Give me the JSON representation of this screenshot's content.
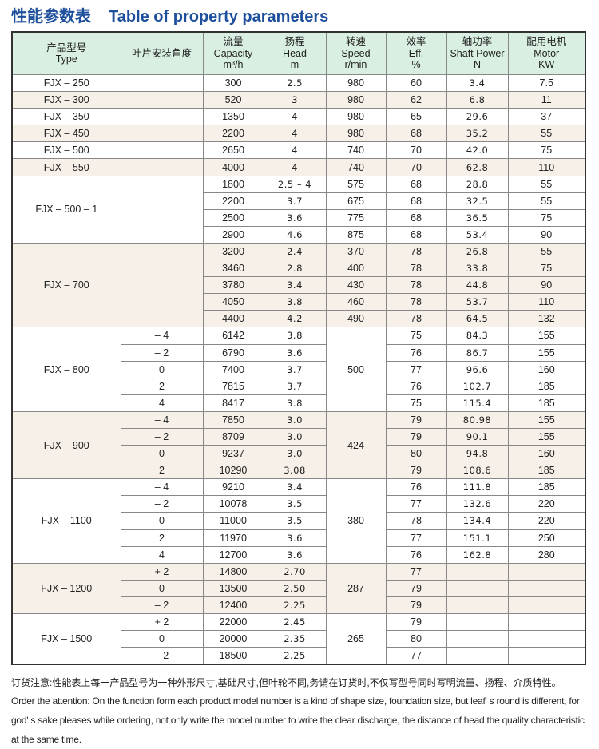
{
  "title": {
    "cn": "性能参数表",
    "en": "Table of property parameters"
  },
  "colors": {
    "title": "#1d4f9c",
    "header_bg": "#d9efe2",
    "alt_row_bg": "#f7f0e8"
  },
  "headers": [
    [
      "产品型号",
      "Type"
    ],
    [
      "叶片安装角度"
    ],
    [
      "流量",
      "Capacity",
      "m³/h"
    ],
    [
      "扬程",
      "Head",
      "m"
    ],
    [
      "转速",
      "Speed",
      "r/min"
    ],
    [
      "效率",
      "Eff.",
      "%"
    ],
    [
      "轴功率",
      "Shaft Power",
      "N"
    ],
    [
      "配用电机",
      "Motor",
      "KW"
    ]
  ],
  "groups": [
    {
      "type": "FJX – 250",
      "rows": [
        {
          "angle": "",
          "capacity": "300",
          "head": "2.5",
          "speed": "980",
          "eff": "60",
          "power": "3.4",
          "motor": "7.5"
        }
      ]
    },
    {
      "type": "FJX – 300",
      "rows": [
        {
          "angle": "",
          "capacity": "520",
          "head": "3",
          "speed": "980",
          "eff": "62",
          "power": "6.8",
          "motor": "11"
        }
      ]
    },
    {
      "type": "FJX – 350",
      "rows": [
        {
          "angle": "",
          "capacity": "1350",
          "head": "4",
          "speed": "980",
          "eff": "65",
          "power": "29.6",
          "motor": "37"
        }
      ]
    },
    {
      "type": "FJX – 450",
      "rows": [
        {
          "angle": "",
          "capacity": "2200",
          "head": "4",
          "speed": "980",
          "eff": "68",
          "power": "35.2",
          "motor": "55"
        }
      ]
    },
    {
      "type": "FJX – 500",
      "rows": [
        {
          "angle": "",
          "capacity": "2650",
          "head": "4",
          "speed": "740",
          "eff": "70",
          "power": "42.0",
          "motor": "75"
        }
      ]
    },
    {
      "type": "FJX – 550",
      "rows": [
        {
          "angle": "",
          "capacity": "4000",
          "head": "4",
          "speed": "740",
          "eff": "70",
          "power": "62.8",
          "motor": "110"
        }
      ]
    },
    {
      "type": "FJX – 500 – 1",
      "angle_merged": "",
      "rows": [
        {
          "capacity": "1800",
          "head": "2.5 – 4",
          "speed": "575",
          "eff": "68",
          "power": "28.8",
          "motor": "55"
        },
        {
          "capacity": "2200",
          "head": "3.7",
          "speed": "675",
          "eff": "68",
          "power": "32.5",
          "motor": "55"
        },
        {
          "capacity": "2500",
          "head": "3.6",
          "speed": "775",
          "eff": "68",
          "power": "36.5",
          "motor": "75"
        },
        {
          "capacity": "2900",
          "head": "4.6",
          "speed": "875",
          "eff": "68",
          "power": "53.4",
          "motor": "90"
        }
      ]
    },
    {
      "type": "FJX – 700",
      "angle_merged": "",
      "rows": [
        {
          "capacity": "3200",
          "head": "2.4",
          "speed": "370",
          "eff": "78",
          "power": "26.8",
          "motor": "55"
        },
        {
          "capacity": "3460",
          "head": "2.8",
          "speed": "400",
          "eff": "78",
          "power": "33.8",
          "motor": "75"
        },
        {
          "capacity": "3780",
          "head": "3.4",
          "speed": "430",
          "eff": "78",
          "power": "44.8",
          "motor": "90"
        },
        {
          "capacity": "4050",
          "head": "3.8",
          "speed": "460",
          "eff": "78",
          "power": "53.7",
          "motor": "110"
        },
        {
          "capacity": "4400",
          "head": "4.2",
          "speed": "490",
          "eff": "78",
          "power": "64.5",
          "motor": "132"
        }
      ]
    },
    {
      "type": "FJX – 800",
      "speed_merged": "500",
      "rows": [
        {
          "angle": "– 4",
          "capacity": "6142",
          "head": "3.8",
          "eff": "75",
          "power": "84.3",
          "motor": "155"
        },
        {
          "angle": "– 2",
          "capacity": "6790",
          "head": "3.6",
          "eff": "76",
          "power": "86.7",
          "motor": "155"
        },
        {
          "angle": "0",
          "capacity": "7400",
          "head": "3.7",
          "eff": "77",
          "power": "96.6",
          "motor": "160"
        },
        {
          "angle": "2",
          "capacity": "7815",
          "head": "3.7",
          "eff": "76",
          "power": "102.7",
          "motor": "185"
        },
        {
          "angle": "4",
          "capacity": "8417",
          "head": "3.8",
          "eff": "75",
          "power": "115.4",
          "motor": "185"
        }
      ]
    },
    {
      "type": "FJX – 900",
      "speed_merged": "424",
      "rows": [
        {
          "angle": "– 4",
          "capacity": "7850",
          "head": "3.0",
          "eff": "79",
          "power": "80.98",
          "motor": "155"
        },
        {
          "angle": "– 2",
          "capacity": "8709",
          "head": "3.0",
          "eff": "79",
          "power": "90.1",
          "motor": "155"
        },
        {
          "angle": "0",
          "capacity": "9237",
          "head": "3.0",
          "eff": "80",
          "power": "94.8",
          "motor": "160"
        },
        {
          "angle": "2",
          "capacity": "10290",
          "head": "3.08",
          "eff": "79",
          "power": "108.6",
          "motor": "185"
        }
      ]
    },
    {
      "type": "FJX – 1100",
      "speed_merged": "380",
      "rows": [
        {
          "angle": "– 4",
          "capacity": "9210",
          "head": "3.4",
          "eff": "76",
          "power": "111.8",
          "motor": "185"
        },
        {
          "angle": "– 2",
          "capacity": "10078",
          "head": "3.5",
          "eff": "77",
          "power": "132.6",
          "motor": "220"
        },
        {
          "angle": "0",
          "capacity": "11000",
          "head": "3.5",
          "eff": "78",
          "power": "134.4",
          "motor": "220"
        },
        {
          "angle": "2",
          "capacity": "11970",
          "head": "3.6",
          "eff": "77",
          "power": "151.1",
          "motor": "250"
        },
        {
          "angle": "4",
          "capacity": "12700",
          "head": "3.6",
          "eff": "76",
          "power": "162.8",
          "motor": "280"
        }
      ]
    },
    {
      "type": "FJX – 1200",
      "speed_merged": "287",
      "rows": [
        {
          "angle": "+ 2",
          "capacity": "14800",
          "head": "2.70",
          "eff": "77",
          "power": "",
          "motor": ""
        },
        {
          "angle": "0",
          "capacity": "13500",
          "head": "2.50",
          "eff": "79",
          "power": "",
          "motor": ""
        },
        {
          "angle": "– 2",
          "capacity": "12400",
          "head": "2.25",
          "eff": "79",
          "power": "",
          "motor": ""
        }
      ]
    },
    {
      "type": "FJX – 1500",
      "speed_merged": "265",
      "rows": [
        {
          "angle": "+ 2",
          "capacity": "22000",
          "head": "2.45",
          "eff": "79",
          "power": "",
          "motor": ""
        },
        {
          "angle": "0",
          "capacity": "20000",
          "head": "2.35",
          "eff": "80",
          "power": "",
          "motor": ""
        },
        {
          "angle": "– 2",
          "capacity": "18500",
          "head": "2.25",
          "eff": "77",
          "power": "",
          "motor": ""
        }
      ]
    }
  ],
  "footer": {
    "cn": "订货注意:性能表上每一产品型号为一种外形尺寸,基础尺寸,但叶轮不同,务请在订货时,不仅写型号同时写明流量、扬程、介质特性。",
    "en": "Order the attention: On the function form each product model number is a kind of shape size, foundation size, but leaf' s round is different, for god' s sake pleases while ordering, not only write the model number to write the clear discharge, the distance of head the quality characteristic at the same time."
  }
}
